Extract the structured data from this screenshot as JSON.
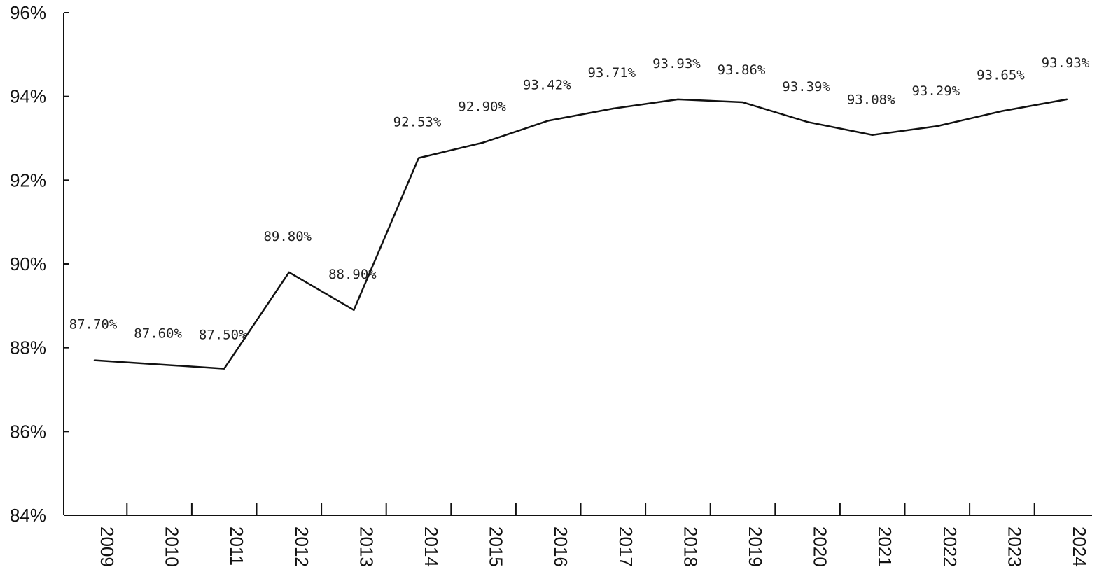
{
  "chart_data": {
    "type": "line",
    "x": [
      "2009",
      "2010",
      "2011",
      "2012",
      "2013",
      "2014",
      "2015",
      "2016",
      "2017",
      "2018",
      "2019",
      "2020",
      "2021",
      "2022",
      "2023",
      "2024"
    ],
    "series": [
      {
        "values": [
          87.7,
          87.6,
          87.5,
          89.8,
          88.9,
          92.53,
          92.9,
          93.42,
          93.71,
          93.93,
          93.86,
          93.39,
          93.08,
          93.29,
          93.65,
          93.93
        ],
        "labels": [
          "87.70%",
          "87.60%",
          "87.50%",
          "89.80%",
          "88.90%",
          "92.53%",
          "92.90%",
          "93.42%",
          "93.71%",
          "93.93%",
          "93.86%",
          "93.39%",
          "93.08%",
          "93.29%",
          "93.65%",
          "93.93%"
        ]
      }
    ],
    "ylim": [
      84,
      96
    ],
    "yticks": [
      "84%",
      "86%",
      "88%",
      "90%",
      "92%",
      "94%",
      "96%"
    ],
    "title": "",
    "xlabel": "",
    "ylabel": "",
    "grid": false,
    "line_color": "#111111"
  }
}
